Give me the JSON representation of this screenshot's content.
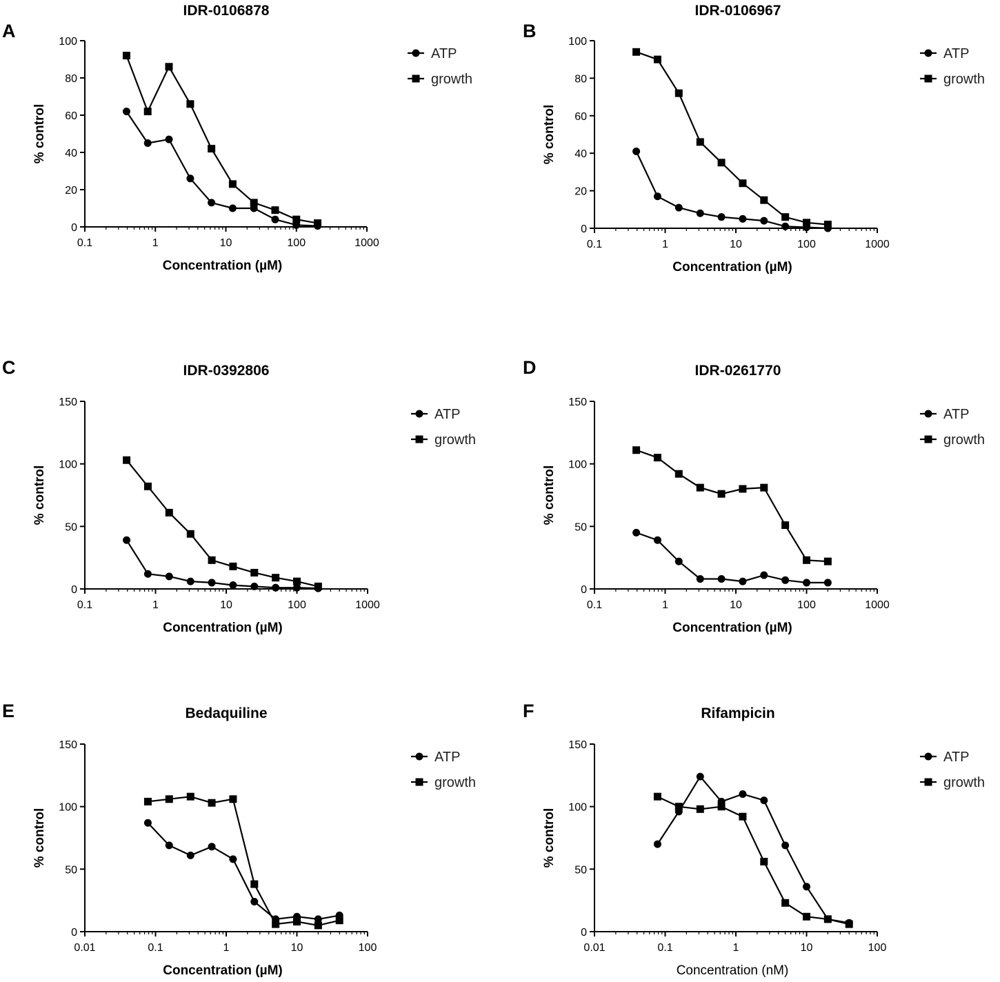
{
  "chart_data": [
    {
      "panel": "A",
      "type": "line",
      "title": "IDR-0106878",
      "xlabel": "Concentration (µM)",
      "ylabel": "% control",
      "xscale": "log",
      "xlim": [
        0.1,
        1000
      ],
      "ylim": [
        0,
        100
      ],
      "xticks": [
        0.1,
        1,
        10,
        100,
        1000
      ],
      "xtick_labels": [
        "0.1",
        "1",
        "10",
        "100",
        "1000"
      ],
      "yticks": [
        0,
        20,
        40,
        60,
        80,
        100
      ],
      "ytick_labels": [
        "0",
        "20",
        "40",
        "60",
        "80",
        "100"
      ],
      "legend_position": "right",
      "series": [
        {
          "name": "ATP",
          "marker": "circle",
          "x": [
            0.39,
            0.78,
            1.56,
            3.13,
            6.25,
            12.5,
            25,
            50,
            100,
            200
          ],
          "y": [
            62,
            45,
            47,
            26,
            13,
            10,
            10,
            4,
            1,
            0.5
          ]
        },
        {
          "name": "growth",
          "marker": "square",
          "x": [
            0.39,
            0.78,
            1.56,
            3.13,
            6.25,
            12.5,
            25,
            50,
            100,
            200
          ],
          "y": [
            92,
            62,
            86,
            66,
            42,
            23,
            13,
            9,
            4,
            2
          ]
        }
      ]
    },
    {
      "panel": "B",
      "type": "line",
      "title": "IDR-0106967",
      "xlabel": "Concentration (µM)",
      "ylabel": "% control",
      "xscale": "log",
      "xlim": [
        0.1,
        1000
      ],
      "ylim": [
        0,
        100
      ],
      "xticks": [
        0.1,
        1,
        10,
        100,
        1000
      ],
      "xtick_labels": [
        "0.1",
        "1",
        "10",
        "100",
        "1000"
      ],
      "yticks": [
        0,
        20,
        40,
        60,
        80,
        100
      ],
      "ytick_labels": [
        "0",
        "20",
        "40",
        "60",
        "80",
        "100"
      ],
      "legend_position": "right",
      "series": [
        {
          "name": "ATP",
          "marker": "circle",
          "x": [
            0.39,
            0.78,
            1.56,
            3.13,
            6.25,
            12.5,
            25,
            50,
            100,
            200
          ],
          "y": [
            41,
            17,
            11,
            8,
            6,
            5,
            4,
            1,
            0.5,
            0
          ]
        },
        {
          "name": "growth",
          "marker": "square",
          "x": [
            0.39,
            0.78,
            1.56,
            3.13,
            6.25,
            12.5,
            25,
            50,
            100,
            200
          ],
          "y": [
            94,
            90,
            72,
            46,
            35,
            24,
            15,
            6,
            3,
            2
          ]
        }
      ]
    },
    {
      "panel": "C",
      "type": "line",
      "title": "IDR-0392806",
      "xlabel": "Concentration (µM)",
      "ylabel": "% control",
      "xscale": "log",
      "xlim": [
        0.1,
        1000
      ],
      "ylim": [
        0,
        150
      ],
      "xticks": [
        0.1,
        1,
        10,
        100,
        1000
      ],
      "xtick_labels": [
        "0.1",
        "1",
        "10",
        "100",
        "1000"
      ],
      "yticks": [
        0,
        50,
        100,
        150
      ],
      "ytick_labels": [
        "0",
        "50",
        "100",
        "150"
      ],
      "legend_position": "right",
      "series": [
        {
          "name": "ATP",
          "marker": "circle",
          "x": [
            0.39,
            0.78,
            1.56,
            3.13,
            6.25,
            12.5,
            25,
            50,
            100,
            200
          ],
          "y": [
            39,
            12,
            10,
            6,
            5,
            3,
            2,
            1,
            1,
            0.5
          ]
        },
        {
          "name": "growth",
          "marker": "square",
          "x": [
            0.39,
            0.78,
            1.56,
            3.13,
            6.25,
            12.5,
            25,
            50,
            100,
            200
          ],
          "y": [
            103,
            82,
            61,
            44,
            23,
            18,
            13,
            9,
            6,
            2
          ]
        }
      ]
    },
    {
      "panel": "D",
      "type": "line",
      "title": "IDR-0261770",
      "xlabel": "Concentration (µM)",
      "ylabel": "% control",
      "xscale": "log",
      "xlim": [
        0.1,
        1000
      ],
      "ylim": [
        0,
        150
      ],
      "xticks": [
        0.1,
        1,
        10,
        100,
        1000
      ],
      "xtick_labels": [
        "0.1",
        "1",
        "10",
        "100",
        "1000"
      ],
      "yticks": [
        0,
        50,
        100,
        150
      ],
      "ytick_labels": [
        "0",
        "50",
        "100",
        "150"
      ],
      "legend_position": "right",
      "series": [
        {
          "name": "ATP",
          "marker": "circle",
          "x": [
            0.39,
            0.78,
            1.56,
            3.13,
            6.25,
            12.5,
            25,
            50,
            100,
            200
          ],
          "y": [
            45,
            39,
            22,
            8,
            8,
            6,
            11,
            7,
            5,
            5
          ]
        },
        {
          "name": "growth",
          "marker": "square",
          "x": [
            0.39,
            0.78,
            1.56,
            3.13,
            6.25,
            12.5,
            25,
            50,
            100,
            200
          ],
          "y": [
            111,
            105,
            92,
            81,
            76,
            80,
            81,
            51,
            23,
            22
          ]
        }
      ]
    },
    {
      "panel": "E",
      "type": "line",
      "title": "Bedaquiline",
      "xlabel": "Concentration (µM)",
      "ylabel": "% control",
      "xscale": "log",
      "xlim": [
        0.01,
        100
      ],
      "ylim": [
        0,
        150
      ],
      "xticks": [
        0.01,
        0.1,
        1,
        10,
        100
      ],
      "xtick_labels": [
        "0.01",
        "0.1",
        "1",
        "10",
        "100"
      ],
      "yticks": [
        0,
        50,
        100,
        150
      ],
      "ytick_labels": [
        "0",
        "50",
        "100",
        "150"
      ],
      "legend_position": "right",
      "series": [
        {
          "name": "ATP",
          "marker": "circle",
          "x": [
            0.078,
            0.156,
            0.313,
            0.625,
            1.25,
            2.5,
            5,
            10,
            20,
            40
          ],
          "y": [
            87,
            69,
            61,
            68,
            58,
            24,
            10,
            12,
            10,
            13
          ]
        },
        {
          "name": "growth",
          "marker": "square",
          "x": [
            0.078,
            0.156,
            0.313,
            0.625,
            1.25,
            2.5,
            5,
            10,
            20,
            40
          ],
          "y": [
            104,
            106,
            108,
            103,
            106,
            38,
            6,
            8,
            5,
            9
          ]
        }
      ]
    },
    {
      "panel": "F",
      "type": "line",
      "title": "Rifampicin",
      "xlabel": "Concentration (nM)",
      "ylabel": "% control",
      "xscale": "log",
      "xlim": [
        0.01,
        100
      ],
      "ylim": [
        0,
        150
      ],
      "xticks": [
        0.01,
        0.1,
        1,
        10,
        100
      ],
      "xtick_labels": [
        "0.01",
        "0.1",
        "1",
        "10",
        "100"
      ],
      "yticks": [
        0,
        50,
        100,
        150
      ],
      "ytick_labels": [
        "0",
        "50",
        "100",
        "150"
      ],
      "legend_position": "right",
      "series": [
        {
          "name": "ATP",
          "marker": "circle",
          "x": [
            0.078,
            0.156,
            0.313,
            0.625,
            1.25,
            2.5,
            5,
            10,
            20,
            40
          ],
          "y": [
            70,
            96,
            124,
            104,
            110,
            105,
            69,
            36,
            10,
            7
          ]
        },
        {
          "name": "growth",
          "marker": "square",
          "x": [
            0.078,
            0.156,
            0.313,
            0.625,
            1.25,
            2.5,
            5,
            10,
            20,
            40
          ],
          "y": [
            108,
            100,
            98,
            100,
            92,
            56,
            23,
            12,
            10,
            6
          ]
        }
      ]
    }
  ]
}
